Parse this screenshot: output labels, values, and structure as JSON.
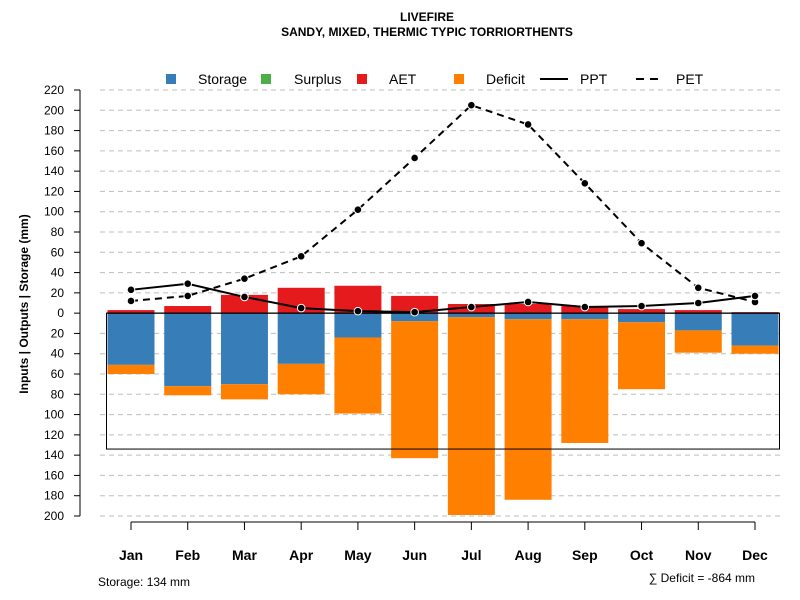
{
  "chart_data": {
    "type": "bar",
    "title": "LIVEFIRE",
    "subtitle": "SANDY, MIXED, THERMIC TYPIC TORRIORTHENTS",
    "ylabel": "Inputs | Outputs | Storage    (mm)",
    "ylim": [
      -200,
      220
    ],
    "yticks": [
      220,
      200,
      180,
      160,
      140,
      120,
      100,
      80,
      60,
      40,
      20,
      0,
      -20,
      -40,
      -60,
      -80,
      -100,
      -120,
      -140,
      -160,
      -180,
      -200
    ],
    "ytick_labels": [
      "220",
      "200",
      "180",
      "160",
      "140",
      "120",
      "100",
      "80",
      "60",
      "40",
      "20",
      "0",
      "20",
      "40",
      "60",
      "80",
      "100",
      "120",
      "140",
      "160",
      "180",
      "200"
    ],
    "grid": true,
    "legend_position": "top",
    "categories": [
      "Jan",
      "Feb",
      "Mar",
      "Apr",
      "May",
      "Jun",
      "Jul",
      "Aug",
      "Sep",
      "Oct",
      "Nov",
      "Dec"
    ],
    "series": [
      {
        "name": "Storage",
        "color": "#377EB8",
        "values": [
          51,
          72,
          70,
          50,
          24,
          8,
          4,
          6,
          6,
          9,
          17,
          32
        ]
      },
      {
        "name": "Surplus",
        "color": "#4DAF4A",
        "values": [
          0,
          0,
          0,
          0,
          0,
          0,
          0,
          0,
          0,
          0,
          0,
          0
        ]
      },
      {
        "name": "AET",
        "color": "#E41A1C",
        "values": [
          3,
          7,
          18,
          25,
          27,
          17,
          9,
          9,
          7,
          4,
          3,
          1
        ]
      },
      {
        "name": "Deficit",
        "color": "#FF7F00",
        "values": [
          9,
          9,
          15,
          30,
          75,
          135,
          195,
          178,
          122,
          66,
          22,
          8
        ]
      },
      {
        "name": "PPT",
        "color": "#000000",
        "style": "solid",
        "values": [
          23,
          29,
          16,
          5,
          2,
          1,
          6,
          11,
          6,
          7,
          10,
          17
        ]
      },
      {
        "name": "PET",
        "color": "#000000",
        "style": "dashed",
        "values": [
          12,
          17,
          34,
          56,
          102,
          153,
          205,
          186,
          128,
          69,
          25,
          11
        ]
      }
    ],
    "storage_capacity": 134,
    "footer_left": "Storage: 134 mm",
    "footer_right": "∑ Deficit = -864 mm"
  }
}
